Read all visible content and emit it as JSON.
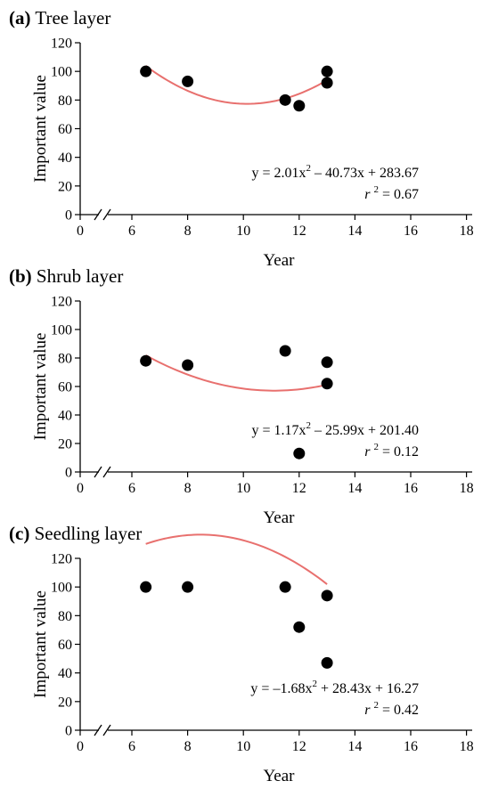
{
  "chart_data": [
    {
      "type": "scatter",
      "panel_label": "(a)",
      "title": "Tree layer",
      "xlabel": "Year",
      "ylabel": "Important value",
      "xlim": [
        0,
        18
      ],
      "ylim": [
        0,
        120
      ],
      "x_ticks": [
        0,
        6,
        8,
        10,
        12,
        14,
        16,
        18
      ],
      "y_ticks": [
        0,
        20,
        40,
        60,
        80,
        100,
        120
      ],
      "axis_break": "x-axis between 0 and 6",
      "points": [
        {
          "x": 6.5,
          "y": 100
        },
        {
          "x": 8,
          "y": 93
        },
        {
          "x": 11.5,
          "y": 80
        },
        {
          "x": 12,
          "y": 76
        },
        {
          "x": 13,
          "y": 100
        },
        {
          "x": 13,
          "y": 92
        }
      ],
      "fit": {
        "a": 2.01,
        "b": -40.73,
        "c": 283.67,
        "x_range": [
          6.5,
          13
        ],
        "color": "#e8706e"
      },
      "equation_text": {
        "pre": "y = 2.01x",
        "exp": "2",
        "post": " – 40.73x + 283.67"
      },
      "r2_text": {
        "r": "r",
        "exp": "2",
        "post": " = 0.67"
      }
    },
    {
      "type": "scatter",
      "panel_label": "(b)",
      "title": "Shrub layer",
      "xlabel": "Year",
      "ylabel": "Important value",
      "xlim": [
        0,
        18
      ],
      "ylim": [
        0,
        120
      ],
      "x_ticks": [
        0,
        6,
        8,
        10,
        12,
        14,
        16,
        18
      ],
      "y_ticks": [
        0,
        20,
        40,
        60,
        80,
        100,
        120
      ],
      "axis_break": "x-axis between 0 and 6",
      "points": [
        {
          "x": 6.5,
          "y": 78
        },
        {
          "x": 8,
          "y": 75
        },
        {
          "x": 11.5,
          "y": 85
        },
        {
          "x": 12,
          "y": 13
        },
        {
          "x": 13,
          "y": 77
        },
        {
          "x": 13,
          "y": 62
        }
      ],
      "fit": {
        "a": 1.17,
        "b": -25.99,
        "c": 201.4,
        "x_range": [
          6.5,
          13
        ],
        "color": "#e8706e"
      },
      "equation_text": {
        "pre": "y = 1.17x",
        "exp": "2",
        "post": " – 25.99x + 201.40"
      },
      "r2_text": {
        "r": "r",
        "exp": "2",
        "post": " = 0.12"
      }
    },
    {
      "type": "scatter",
      "panel_label": "(c)",
      "title": "Seedling layer",
      "xlabel": "Year",
      "ylabel": "Important value",
      "xlim": [
        0,
        18
      ],
      "ylim": [
        0,
        120
      ],
      "x_ticks": [
        0,
        6,
        8,
        10,
        12,
        14,
        16,
        18
      ],
      "y_ticks": [
        0,
        20,
        40,
        60,
        80,
        100,
        120
      ],
      "axis_break": "x-axis between 0 and 6",
      "points": [
        {
          "x": 6.5,
          "y": 100
        },
        {
          "x": 8,
          "y": 100
        },
        {
          "x": 11.5,
          "y": 100
        },
        {
          "x": 12,
          "y": 72
        },
        {
          "x": 13,
          "y": 94
        },
        {
          "x": 13,
          "y": 47
        }
      ],
      "fit": {
        "a": -1.68,
        "b": 28.43,
        "c": 16.27,
        "x_range": [
          6.5,
          13
        ],
        "color": "#e8706e"
      },
      "equation_text": {
        "pre": "y = –1.68x",
        "exp": "2",
        "post": " + 28.43x + 16.27"
      },
      "r2_text": {
        "r": "r",
        "exp": "2",
        "post": " = 0.42"
      }
    }
  ]
}
